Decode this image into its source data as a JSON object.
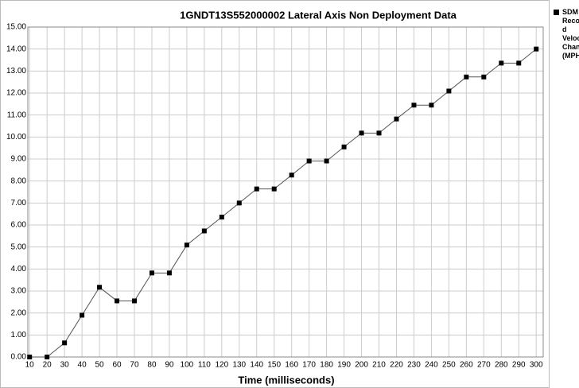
{
  "chart_data": {
    "type": "line",
    "title": "1GNDT13S552000002  Lateral Axis Non Deployment Data",
    "xlabel": "Time (milliseconds)",
    "x": [
      10,
      20,
      30,
      40,
      50,
      60,
      70,
      80,
      90,
      100,
      110,
      120,
      130,
      140,
      150,
      160,
      170,
      180,
      190,
      200,
      210,
      220,
      230,
      240,
      250,
      260,
      270,
      280,
      290,
      300
    ],
    "series": [
      {
        "name": "SDM Recorded Velocity Change (MPH)",
        "color": "#000000",
        "values": [
          0,
          0,
          0.64,
          1.9,
          3.17,
          2.55,
          2.55,
          3.82,
          3.82,
          5.09,
          5.73,
          6.36,
          7.0,
          7.64,
          7.64,
          8.27,
          8.91,
          8.91,
          9.55,
          10.18,
          10.18,
          10.82,
          11.45,
          11.45,
          12.09,
          12.73,
          12.73,
          13.36,
          13.36,
          14.0
        ]
      }
    ],
    "xlim": [
      9,
      304
    ],
    "xticks": [
      10,
      20,
      30,
      40,
      50,
      60,
      70,
      80,
      90,
      100,
      110,
      120,
      130,
      140,
      150,
      160,
      170,
      180,
      190,
      200,
      210,
      220,
      230,
      240,
      250,
      260,
      270,
      280,
      290,
      300
    ],
    "ylim": [
      0,
      15
    ],
    "yticks": [
      {
        "value": 0,
        "label": "0.00"
      },
      {
        "value": 1,
        "label": "1.00"
      },
      {
        "value": 2,
        "label": "2.00"
      },
      {
        "value": 3,
        "label": "3.00"
      },
      {
        "value": 4,
        "label": "4.00"
      },
      {
        "value": 5,
        "label": "5.00"
      },
      {
        "value": 6,
        "label": "6.00"
      },
      {
        "value": 7,
        "label": "7.00"
      },
      {
        "value": 8,
        "label": "8.00"
      },
      {
        "value": 9,
        "label": "9.00"
      },
      {
        "value": 10,
        "label": "10.00"
      },
      {
        "value": 11,
        "label": "11.00"
      },
      {
        "value": 12,
        "label": "12.00"
      },
      {
        "value": 13,
        "label": "13.00"
      },
      {
        "value": 14,
        "label": "14.00"
      },
      {
        "value": 15,
        "label": "15.00"
      }
    ],
    "grid": true,
    "legend": "right"
  }
}
